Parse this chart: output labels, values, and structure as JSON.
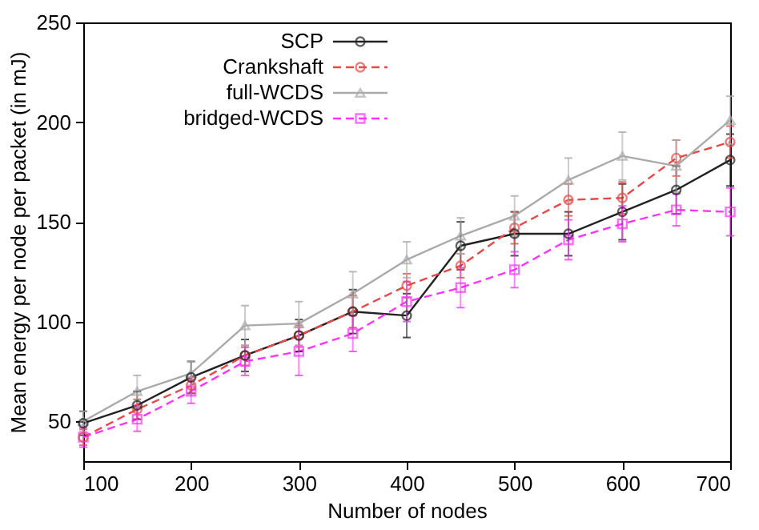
{
  "chart_data": {
    "type": "line",
    "xlabel": "Number of nodes",
    "ylabel": "Mean energy per node per packet (in mJ)",
    "x": [
      100,
      150,
      200,
      250,
      300,
      350,
      400,
      450,
      500,
      550,
      600,
      650,
      700
    ],
    "series": [
      {
        "name": "SCP",
        "color": "#222222",
        "marker": "circle",
        "line_style": "solid",
        "values": [
          49,
          58,
          72,
          83,
          93,
          105,
          103,
          138,
          144,
          144,
          155,
          166,
          181
        ],
        "errors": [
          6,
          7,
          8,
          8,
          8,
          11,
          11,
          12,
          11,
          11,
          14,
          12,
          13
        ]
      },
      {
        "name": "Crankshaft",
        "color": "#e84848",
        "marker": "circle",
        "line_style": "dashed",
        "values": [
          42,
          56,
          68,
          83,
          93,
          105,
          118,
          128,
          147,
          161,
          162,
          182,
          190
        ],
        "errors": [
          4,
          5,
          4,
          5,
          5,
          8,
          6,
          6,
          8,
          8,
          8,
          9,
          8
        ]
      },
      {
        "name": "full-WCDS",
        "color": "#aaaaaa",
        "marker": "triangle",
        "line_style": "solid",
        "values": [
          50,
          65,
          74,
          98,
          99,
          114,
          131,
          143,
          153,
          171,
          183,
          178,
          201
        ],
        "errors": [
          5,
          8,
          6,
          10,
          11,
          11,
          9,
          9,
          10,
          11,
          12,
          13,
          12
        ]
      },
      {
        "name": "bridged-WCDS",
        "color": "#ff33ff",
        "marker": "square",
        "line_style": "dashed",
        "values": [
          42,
          51,
          65,
          80,
          85,
          94,
          110,
          117,
          126,
          141,
          149,
          156,
          155
        ],
        "errors": [
          5,
          6,
          6,
          7,
          12,
          9,
          10,
          10,
          9,
          10,
          9,
          8,
          12
        ]
      }
    ],
    "xlim": [
      100,
      700
    ],
    "ylim": [
      30,
      250
    ],
    "xticks": [
      100,
      200,
      300,
      400,
      500,
      600,
      700
    ],
    "yticks": [
      50,
      100,
      150,
      200,
      250
    ],
    "grid": false,
    "legend": "top left"
  }
}
